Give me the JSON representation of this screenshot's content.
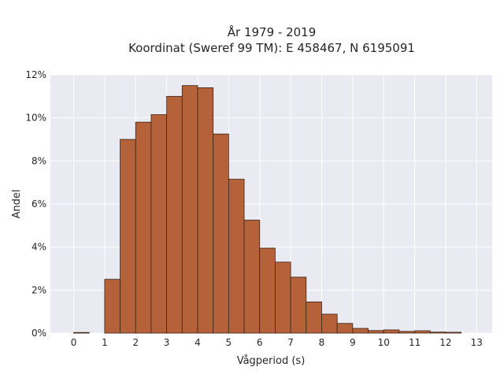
{
  "chart_data": {
    "type": "bar",
    "title_lines": [
      "År 1979 - 2019",
      "Koordinat (Sweref 99 TM): E 458467, N 6195091"
    ],
    "xlabel": "Vågperiod (s)",
    "ylabel": "Andel",
    "xlim": [
      -0.75,
      13.5
    ],
    "ylim": [
      0,
      12
    ],
    "x_ticks": [
      "0",
      "1",
      "2",
      "3",
      "4",
      "5",
      "6",
      "7",
      "8",
      "9",
      "10",
      "11",
      "12",
      "13"
    ],
    "y_ticks": [
      "0%",
      "2%",
      "4%",
      "6%",
      "8%",
      "10%",
      "12%"
    ],
    "bin_width": 0.5,
    "bins": [
      {
        "start": 0.0,
        "value": 0.03
      },
      {
        "start": 0.5,
        "value": 0.0
      },
      {
        "start": 1.0,
        "value": 2.5
      },
      {
        "start": 1.5,
        "value": 9.0
      },
      {
        "start": 2.0,
        "value": 9.8
      },
      {
        "start": 2.5,
        "value": 10.15
      },
      {
        "start": 3.0,
        "value": 11.0
      },
      {
        "start": 3.5,
        "value": 11.5
      },
      {
        "start": 4.0,
        "value": 11.4
      },
      {
        "start": 4.5,
        "value": 9.25
      },
      {
        "start": 5.0,
        "value": 7.15
      },
      {
        "start": 5.5,
        "value": 5.25
      },
      {
        "start": 6.0,
        "value": 3.95
      },
      {
        "start": 6.5,
        "value": 3.3
      },
      {
        "start": 7.0,
        "value": 2.6
      },
      {
        "start": 7.5,
        "value": 1.45
      },
      {
        "start": 8.0,
        "value": 0.88
      },
      {
        "start": 8.5,
        "value": 0.45
      },
      {
        "start": 9.0,
        "value": 0.22
      },
      {
        "start": 9.5,
        "value": 0.12
      },
      {
        "start": 10.0,
        "value": 0.15
      },
      {
        "start": 10.5,
        "value": 0.08
      },
      {
        "start": 11.0,
        "value": 0.11
      },
      {
        "start": 11.5,
        "value": 0.05
      },
      {
        "start": 12.0,
        "value": 0.04
      }
    ],
    "grid": true,
    "colors": {
      "bar_fill": "#b5623b",
      "bar_edge": "#3a2418",
      "plot_background": "#eaeaf2",
      "grid": "#ffffff"
    }
  }
}
